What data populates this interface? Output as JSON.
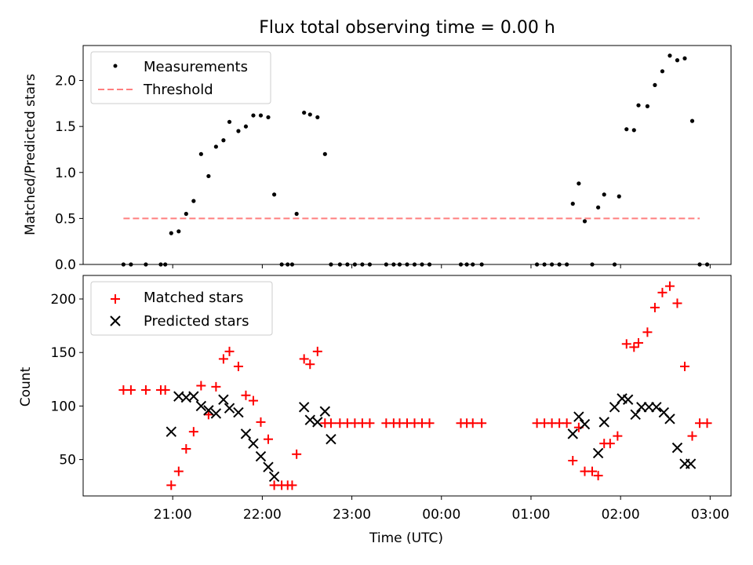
{
  "chart_data": [
    {
      "type": "scatter",
      "title": "Flux total observing time = 0.00 h",
      "ylabel": "Matched/Predicted stars",
      "xlabel": "",
      "ylim": [
        0,
        2.38
      ],
      "yticks": [
        0.0,
        0.5,
        1.0,
        1.5,
        2.0
      ],
      "ytick_labels": [
        "0.0",
        "0.5",
        "1.0",
        "1.5",
        "2.0"
      ],
      "grid": false,
      "legend": "upper left",
      "series": [
        {
          "name": "Measurements",
          "marker": "dot",
          "color": "#000000",
          "x": [
            "20:27",
            "20:32",
            "20:42",
            "20:52",
            "20:55",
            "20:59",
            "21:04",
            "21:09",
            "21:14",
            "21:19",
            "21:24",
            "21:29",
            "21:34",
            "21:38",
            "21:44",
            "21:49",
            "21:54",
            "21:59",
            "22:04",
            "22:08",
            "22:13",
            "22:17",
            "22:20",
            "22:23",
            "22:28",
            "22:32",
            "22:37",
            "22:42",
            "22:46",
            "22:52",
            "22:57",
            "23:02",
            "23:07",
            "23:12",
            "23:23",
            "23:28",
            "23:32",
            "23:37",
            "23:42",
            "23:47",
            "23:52",
            "00:13",
            "00:17",
            "00:21",
            "00:27",
            "01:04",
            "01:09",
            "01:14",
            "01:19",
            "01:24",
            "01:28",
            "01:32",
            "01:36",
            "01:41",
            "01:45",
            "01:49",
            "01:56",
            "01:59",
            "02:04",
            "02:09",
            "02:12",
            "02:18",
            "02:23",
            "02:28",
            "02:33",
            "02:38",
            "02:43",
            "02:48",
            "02:53",
            "02:58"
          ],
          "y": [
            0,
            0,
            0,
            0,
            0,
            0.34,
            0.36,
            0.55,
            0.69,
            1.2,
            0.96,
            1.28,
            1.35,
            1.55,
            1.45,
            1.5,
            1.62,
            1.62,
            1.6,
            0.76,
            0,
            0,
            0,
            0.55,
            1.65,
            1.63,
            1.6,
            1.2,
            0,
            0,
            0,
            0,
            0,
            0,
            0,
            0,
            0,
            0,
            0,
            0,
            0,
            0,
            0,
            0,
            0,
            0,
            0,
            0,
            0,
            0,
            0.66,
            0.88,
            0.47,
            0,
            0.62,
            0.76,
            0,
            0.74,
            1.47,
            1.46,
            1.73,
            1.72,
            1.95,
            2.1,
            2.27,
            2.22,
            2.24,
            1.56,
            0,
            0
          ]
        },
        {
          "name": "Threshold",
          "style": "dashed",
          "color": "#ff7f7f",
          "x": [
            "20:27",
            "02:53"
          ],
          "y": [
            0.5,
            0.5
          ]
        }
      ]
    },
    {
      "type": "scatter",
      "ylabel": "Count",
      "xlabel": "Time (UTC)",
      "ylim": [
        16,
        222
      ],
      "yticks": [
        50,
        100,
        150,
        200
      ],
      "ytick_labels": [
        "50",
        "100",
        "150",
        "200"
      ],
      "xlim": [
        "20:00",
        "03:14"
      ],
      "xticks": [
        "21:00",
        "22:00",
        "23:00",
        "00:00",
        "01:00",
        "02:00",
        "03:00"
      ],
      "xtick_labels": [
        "21:00",
        "22:00",
        "23:00",
        "00:00",
        "01:00",
        "02:00",
        "03:00"
      ],
      "grid": false,
      "legend": "upper left",
      "series": [
        {
          "name": "Matched stars",
          "marker": "plus",
          "color": "#ff0000",
          "x": [
            "20:27",
            "20:32",
            "20:42",
            "20:52",
            "20:55",
            "20:59",
            "21:04",
            "21:09",
            "21:14",
            "21:19",
            "21:24",
            "21:29",
            "21:34",
            "21:38",
            "21:44",
            "21:49",
            "21:54",
            "21:59",
            "22:04",
            "22:08",
            "22:13",
            "22:17",
            "22:20",
            "22:23",
            "22:28",
            "22:32",
            "22:37",
            "22:42",
            "22:46",
            "22:52",
            "22:57",
            "23:02",
            "23:07",
            "23:12",
            "23:23",
            "23:28",
            "23:32",
            "23:37",
            "23:42",
            "23:47",
            "23:52",
            "00:13",
            "00:17",
            "00:21",
            "00:27",
            "01:04",
            "01:09",
            "01:14",
            "01:19",
            "01:24",
            "01:28",
            "01:32",
            "01:36",
            "01:41",
            "01:45",
            "01:49",
            "01:53",
            "01:58",
            "02:04",
            "02:09",
            "02:12",
            "02:18",
            "02:23",
            "02:28",
            "02:33",
            "02:38",
            "02:43",
            "02:48",
            "02:53",
            "02:58"
          ],
          "y": [
            115,
            115,
            115,
            115,
            115,
            26,
            39,
            60,
            76,
            119,
            92,
            118,
            144,
            151,
            137,
            110,
            105,
            85,
            69,
            26,
            26,
            26,
            26,
            55,
            144,
            139,
            151,
            84,
            84,
            84,
            84,
            84,
            84,
            84,
            84,
            84,
            84,
            84,
            84,
            84,
            84,
            84,
            84,
            84,
            84,
            84,
            84,
            84,
            84,
            84,
            49,
            80,
            39,
            39,
            35,
            65,
            65,
            72,
            158,
            155,
            159,
            169,
            192,
            206,
            212,
            196,
            137,
            72,
            84,
            84
          ]
        },
        {
          "name": "Predicted stars",
          "marker": "x",
          "color": "#000000",
          "x": [
            "20:59",
            "21:04",
            "21:09",
            "21:14",
            "21:19",
            "21:24",
            "21:29",
            "21:34",
            "21:38",
            "21:44",
            "21:49",
            "21:54",
            "21:59",
            "22:04",
            "22:08",
            "22:28",
            "22:32",
            "22:37",
            "22:42",
            "22:46",
            "01:28",
            "01:32",
            "01:36",
            "01:45",
            "01:49",
            "01:56",
            "02:01",
            "02:05",
            "02:10",
            "02:14",
            "02:19",
            "02:24",
            "02:29",
            "02:33",
            "02:38",
            "02:43",
            "02:47"
          ],
          "y": [
            76,
            109,
            108,
            109,
            100,
            96,
            93,
            106,
            98,
            94,
            74,
            65,
            53,
            43,
            34,
            99,
            87,
            85,
            95,
            69,
            74,
            90,
            83,
            56,
            85,
            99,
            107,
            106,
            92,
            99,
            99,
            99,
            94,
            88,
            61,
            46,
            46
          ]
        }
      ]
    }
  ]
}
